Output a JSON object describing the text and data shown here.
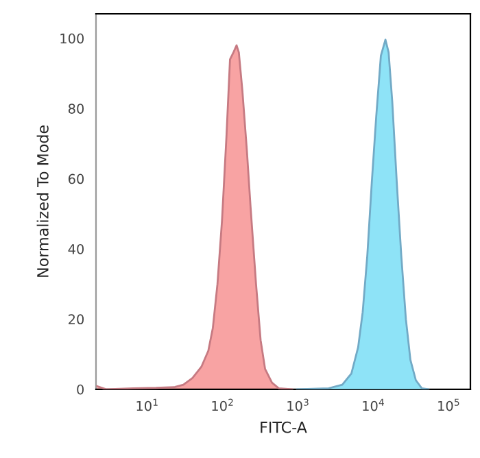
{
  "chart_data": {
    "type": "area",
    "xlabel": "FITC-A",
    "ylabel": "Normalized To Mode",
    "log": "x",
    "grid": false,
    "legend": false,
    "xlim": [
      2.1,
      195000
    ],
    "ylim": [
      0,
      107
    ],
    "xticks": [
      {
        "value": 10,
        "label": "10$^{1}$"
      },
      {
        "value": 100,
        "label": "10$^{2}$"
      },
      {
        "value": 1000,
        "label": "10$^{3}$"
      },
      {
        "value": 10000,
        "label": "10$^{4}$"
      },
      {
        "value": 100000,
        "label": "10$^{5}$"
      }
    ],
    "yticks": [
      0,
      20,
      40,
      60,
      80,
      100
    ],
    "series": [
      {
        "color": "#f8a3a3",
        "x": [
          2.17,
          2.87,
          6.59,
          13.2,
          23.0,
          30.3,
          40.0,
          52.8,
          65.0,
          74.6,
          85.9,
          98.6,
          113,
          126,
          140,
          154,
          165,
          184,
          211,
          236,
          279,
          321,
          368,
          454,
          558,
          847
        ],
        "values": [
          0.9,
          0,
          0.3,
          0.4,
          0.6,
          1.3,
          3.2,
          6.5,
          11,
          17.5,
          30,
          48,
          72,
          94,
          96,
          98,
          96,
          85,
          68,
          52,
          30,
          14,
          5.8,
          1.9,
          0.3,
          0
        ]
      },
      {
        "color": "#8ee3f7",
        "x": [
          973,
          2570,
          3890,
          5140,
          6320,
          7260,
          8350,
          9590,
          11000,
          12650,
          14540,
          16030,
          17910,
          20560,
          23610,
          27160,
          31190,
          36810,
          44140,
          54330
        ],
        "values": [
          0,
          0.3,
          1.3,
          4.5,
          12,
          22,
          38,
          59,
          78,
          95,
          99.6,
          96,
          82,
          59,
          38,
          20,
          8.4,
          2.6,
          0.3,
          0
        ]
      }
    ]
  }
}
